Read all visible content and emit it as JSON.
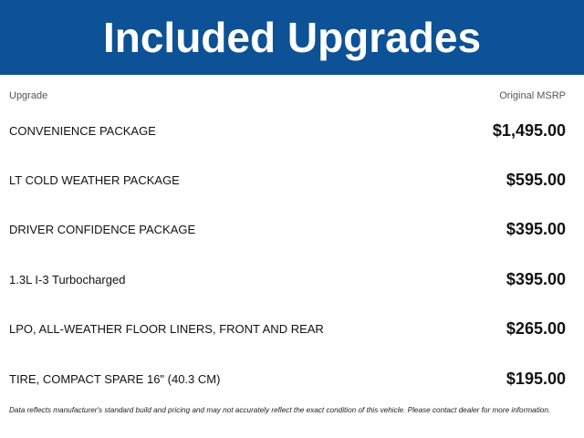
{
  "title": "Included Upgrades",
  "columns": {
    "upgrade": "Upgrade",
    "msrp": "Original MSRP"
  },
  "rows": [
    {
      "name": "CONVENIENCE PACKAGE",
      "price": "$1,495.00"
    },
    {
      "name": "LT COLD WEATHER PACKAGE",
      "price": "$595.00"
    },
    {
      "name": "DRIVER CONFIDENCE PACKAGE",
      "price": "$395.00"
    },
    {
      "name": "1.3L I-3 Turbocharged",
      "price": "$395.00"
    },
    {
      "name": "LPO, ALL-WEATHER FLOOR LINERS, FRONT AND REAR",
      "price": "$265.00"
    },
    {
      "name": "TIRE, COMPACT SPARE 16\" (40.3 CM)",
      "price": "$195.00"
    }
  ],
  "disclaimer": "Data reflects manufacturer's standard build and pricing and may not accurately reflect the exact condition of this vehicle. Please contact dealer for more information.",
  "colors": {
    "banner": "#0d5196"
  }
}
